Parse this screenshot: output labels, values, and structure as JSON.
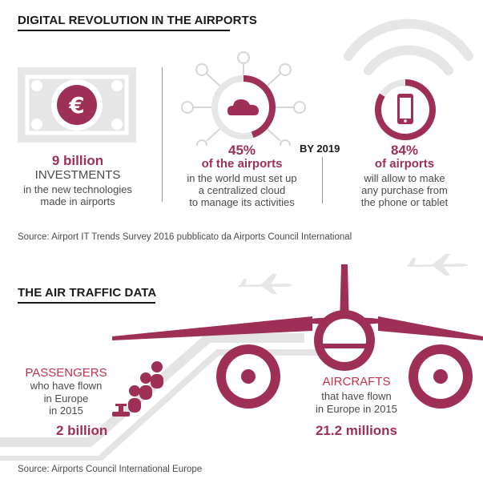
{
  "section1": {
    "title": "DIGITAL REVOLUTION IN THE AIRPORTS",
    "col1": {
      "value": "9 billion",
      "label1": "INVESTMENTS",
      "label2": "in the new technologies",
      "label3": "made in airports"
    },
    "col2": {
      "value": "45%",
      "value_fraction": 0.45,
      "sub": "of the airports",
      "label1": "in the world must set up",
      "label2": "a centralized cloud",
      "label3": "to manage its activities"
    },
    "by_year": "BY 2019",
    "col3": {
      "value": "84%",
      "value_fraction": 0.84,
      "sub": "of airports",
      "label1": "will allow to make",
      "label2": "any purchase from",
      "label3": "the phone or tablet"
    },
    "source": "Source: Airport IT Trends Survey 2016 pubblicato da Airports Council International"
  },
  "section2": {
    "title": "THE AIR TRAFFIC DATA",
    "passengers": {
      "heading": "PASSENGERS",
      "label1": "who have flown",
      "label2": "in Europe",
      "label3": "in 2015",
      "value": "2 billion"
    },
    "aircrafts": {
      "heading": "AIRCRAFTS",
      "label1": "that have flown",
      "label2": "in Europe in 2015",
      "value": "21.2 millions"
    },
    "source": "Source: Airports Council International Europe"
  },
  "colors": {
    "accent": "#9e2f57",
    "light_gray": "#e6e6e6",
    "mid_gray": "#cfcfcf",
    "text": "#4a4a4a"
  },
  "icons": [
    "euro-banknote-icon",
    "cloud-network-icon",
    "smartphone-icon",
    "wifi-icon",
    "airplane-icon",
    "passenger-icon",
    "escalator-icon"
  ]
}
